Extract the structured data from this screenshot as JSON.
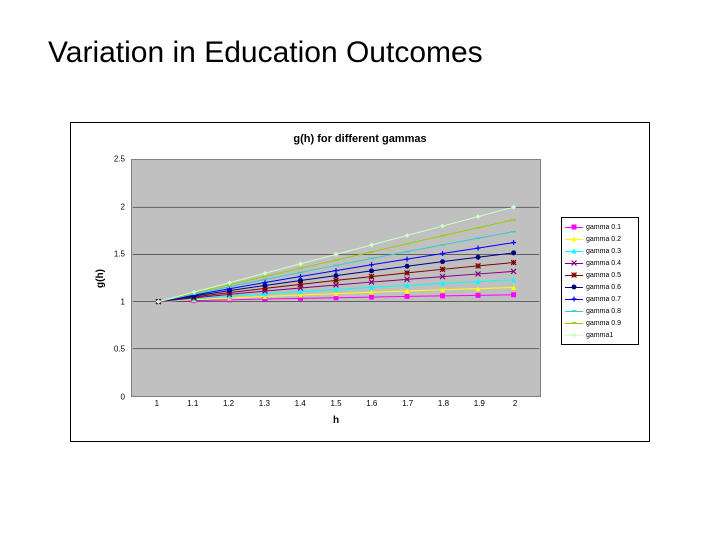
{
  "slide": {
    "title": "Variation in Education Outcomes"
  },
  "chart": {
    "type": "line",
    "title": "g(h) for different gammas",
    "title_fontsize": 11,
    "title_weight": "bold",
    "x_axis_title": "h",
    "y_axis_title": "g(h)",
    "axis_title_fontsize": 10,
    "background_color": "#ffffff",
    "plot_bg_color": "#c0c0c0",
    "grid_color": "#000000",
    "border_color": "#808080",
    "x": [
      1,
      1.1,
      1.2,
      1.3,
      1.4,
      1.5,
      1.6,
      1.7,
      1.8,
      1.9,
      2
    ],
    "xtick_labels": [
      "1",
      "1.1",
      "1.2",
      "1.3",
      "1.4",
      "1.5",
      "1.6",
      "1.7",
      "1.8",
      "1.9",
      "2"
    ],
    "xlim": [
      0.95,
      2.05
    ],
    "ylim": [
      0,
      2.5
    ],
    "ytick_step": 0.5,
    "ytick_labels": [
      "0",
      "0.5",
      "1",
      "1.5",
      "2",
      "2.5"
    ],
    "tick_fontsize": 8,
    "grid_on": true,
    "line_width": 1,
    "marker_size": 5,
    "series": [
      {
        "label": "gamma 0.1",
        "color": "#ff00ff",
        "marker": "square",
        "y": [
          1.0,
          1.01,
          1.018,
          1.027,
          1.034,
          1.041,
          1.048,
          1.055,
          1.061,
          1.066,
          1.072
        ]
      },
      {
        "label": "gamma 0.2",
        "color": "#ffff00",
        "marker": "triangle",
        "y": [
          1.0,
          1.019,
          1.037,
          1.054,
          1.07,
          1.084,
          1.099,
          1.112,
          1.125,
          1.137,
          1.149
        ]
      },
      {
        "label": "gamma 0.3",
        "color": "#00ffff",
        "marker": "triangle",
        "y": [
          1.0,
          1.029,
          1.056,
          1.082,
          1.106,
          1.129,
          1.151,
          1.172,
          1.193,
          1.212,
          1.231
        ]
      },
      {
        "label": "gamma 0.4",
        "color": "#800080",
        "marker": "x",
        "y": [
          1.0,
          1.039,
          1.076,
          1.111,
          1.144,
          1.176,
          1.207,
          1.236,
          1.265,
          1.293,
          1.32
        ]
      },
      {
        "label": "gamma 0.5",
        "color": "#800000",
        "marker": "asterisk",
        "y": [
          1.0,
          1.049,
          1.095,
          1.14,
          1.183,
          1.225,
          1.265,
          1.304,
          1.342,
          1.378,
          1.414
        ]
      },
      {
        "label": "gamma 0.6",
        "color": "#000080",
        "marker": "circle",
        "y": [
          1.0,
          1.059,
          1.116,
          1.171,
          1.224,
          1.275,
          1.326,
          1.375,
          1.423,
          1.47,
          1.516
        ]
      },
      {
        "label": "gamma 0.7",
        "color": "#0000ff",
        "marker": "plus",
        "y": [
          1.0,
          1.069,
          1.136,
          1.202,
          1.266,
          1.328,
          1.39,
          1.45,
          1.509,
          1.567,
          1.625
        ]
      },
      {
        "label": "gamma 0.8",
        "color": "#33cccc",
        "marker": "dash",
        "y": [
          1.0,
          1.079,
          1.157,
          1.234,
          1.309,
          1.383,
          1.457,
          1.529,
          1.601,
          1.671,
          1.741
        ]
      },
      {
        "label": "gamma 0.9",
        "color": "#99cc00",
        "marker": "dash",
        "y": [
          1.0,
          1.09,
          1.178,
          1.266,
          1.354,
          1.44,
          1.527,
          1.612,
          1.698,
          1.782,
          1.866
        ]
      },
      {
        "label": "gamma1",
        "color": "#ccffcc",
        "marker": "diamond",
        "y": [
          1.0,
          1.1,
          1.2,
          1.3,
          1.4,
          1.5,
          1.6,
          1.7,
          1.8,
          1.9,
          2.0
        ]
      }
    ],
    "legend": {
      "position": "right",
      "fontsize": 7,
      "bg_color": "#ffffff",
      "border_color": "#000000"
    }
  }
}
